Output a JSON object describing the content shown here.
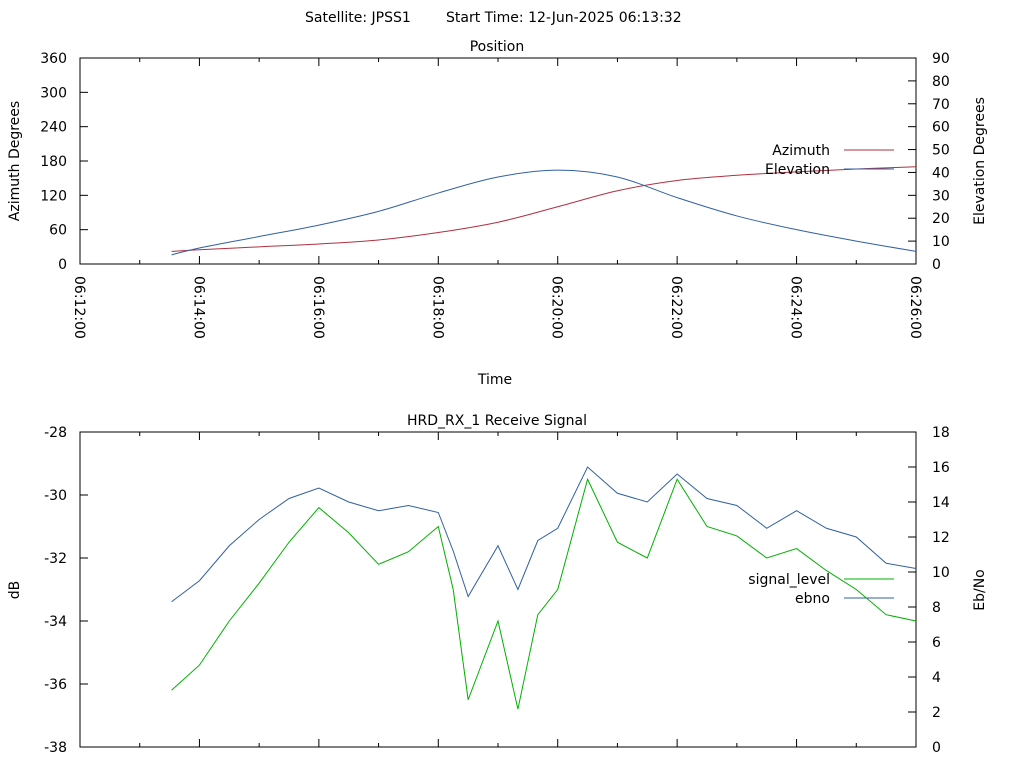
{
  "header": {
    "satellite": "Satellite: JPSS1",
    "start_time": "Start Time: 12-Jun-2025 06:13:32"
  },
  "chart_data": [
    {
      "type": "line",
      "title": "Position",
      "xlabel": "Time",
      "ylabel": "Azimuth Degrees",
      "y2label": "Elevation Degrees",
      "xlim": [
        "06:12:00",
        "06:26:00"
      ],
      "ylim": [
        0,
        360
      ],
      "y2lim": [
        0,
        90
      ],
      "xticks": [
        "06:12:00",
        "06:14:00",
        "06:16:00",
        "06:18:00",
        "06:20:00",
        "06:22:00",
        "06:24:00",
        "06:26:00"
      ],
      "yticks": [
        0,
        60,
        120,
        180,
        240,
        300,
        360
      ],
      "y2ticks": [
        0,
        10,
        20,
        30,
        40,
        50,
        60,
        70,
        80,
        90
      ],
      "legend_position": "right",
      "series": [
        {
          "name": "Azimuth",
          "axis": "left",
          "color": "#b03040",
          "x": [
            "06:13:32",
            "06:14:00",
            "06:15:00",
            "06:16:00",
            "06:17:00",
            "06:18:00",
            "06:19:00",
            "06:20:00",
            "06:21:00",
            "06:22:00",
            "06:23:00",
            "06:24:00",
            "06:25:00",
            "06:26:00"
          ],
          "y": [
            22,
            25,
            30,
            35,
            42,
            55,
            73,
            100,
            128,
            146,
            155,
            161,
            166,
            170
          ]
        },
        {
          "name": "Elevation",
          "axis": "right",
          "color": "#3060a0",
          "x": [
            "06:13:32",
            "06:14:00",
            "06:15:00",
            "06:16:00",
            "06:17:00",
            "06:18:00",
            "06:19:00",
            "06:20:00",
            "06:21:00",
            "06:22:00",
            "06:23:00",
            "06:24:00",
            "06:25:00",
            "06:26:00"
          ],
          "y": [
            4,
            7,
            12,
            17,
            23,
            31,
            38,
            41,
            38,
            29,
            21,
            15,
            10,
            5.5
          ]
        }
      ]
    },
    {
      "type": "line",
      "title": "HRD_RX_1 Receive Signal",
      "ylabel": "dB",
      "y2label": "Eb/No",
      "xlim": [
        "06:12:00",
        "06:26:00"
      ],
      "ylim": [
        -38,
        -28
      ],
      "y2lim": [
        0,
        18
      ],
      "yticks": [
        -38,
        -36,
        -34,
        -32,
        -30,
        -28
      ],
      "y2ticks": [
        0,
        2,
        4,
        6,
        8,
        10,
        12,
        14,
        16,
        18
      ],
      "legend_position": "right",
      "series": [
        {
          "name": "signal_level",
          "axis": "left",
          "color": "#00b000",
          "x": [
            "06:13:32",
            "06:14:00",
            "06:14:30",
            "06:15:00",
            "06:15:30",
            "06:16:00",
            "06:16:30",
            "06:17:00",
            "06:17:30",
            "06:18:00",
            "06:18:15",
            "06:18:30",
            "06:19:00",
            "06:19:20",
            "06:19:40",
            "06:20:00",
            "06:20:30",
            "06:21:00",
            "06:21:30",
            "06:22:00",
            "06:22:30",
            "06:23:00",
            "06:23:30",
            "06:24:00",
            "06:24:30",
            "06:25:00",
            "06:25:30",
            "06:26:00"
          ],
          "y": [
            -36.2,
            -35.4,
            -34.0,
            -32.8,
            -31.5,
            -30.4,
            -31.2,
            -32.2,
            -31.8,
            -31.0,
            -33.0,
            -36.5,
            -34.0,
            -36.8,
            -33.8,
            -33.0,
            -29.5,
            -31.5,
            -32.0,
            -29.5,
            -31.0,
            -31.3,
            -32.0,
            -31.7,
            -32.4,
            -33.0,
            -33.8,
            -34.0
          ]
        },
        {
          "name": "ebno",
          "axis": "right",
          "color": "#3060a0",
          "x": [
            "06:13:32",
            "06:14:00",
            "06:14:30",
            "06:15:00",
            "06:15:30",
            "06:16:00",
            "06:16:30",
            "06:17:00",
            "06:17:30",
            "06:18:00",
            "06:18:15",
            "06:18:30",
            "06:19:00",
            "06:19:20",
            "06:19:40",
            "06:20:00",
            "06:20:30",
            "06:21:00",
            "06:21:30",
            "06:22:00",
            "06:22:30",
            "06:23:00",
            "06:23:30",
            "06:24:00",
            "06:24:30",
            "06:25:00",
            "06:25:30",
            "06:26:00"
          ],
          "y": [
            8.3,
            9.5,
            11.5,
            13.0,
            14.2,
            14.8,
            14.0,
            13.5,
            13.8,
            13.4,
            11.2,
            8.6,
            11.5,
            9.0,
            11.8,
            12.5,
            16.0,
            14.5,
            14.0,
            15.6,
            14.2,
            13.8,
            12.5,
            13.5,
            12.5,
            12.0,
            10.5,
            10.2
          ]
        }
      ]
    }
  ]
}
